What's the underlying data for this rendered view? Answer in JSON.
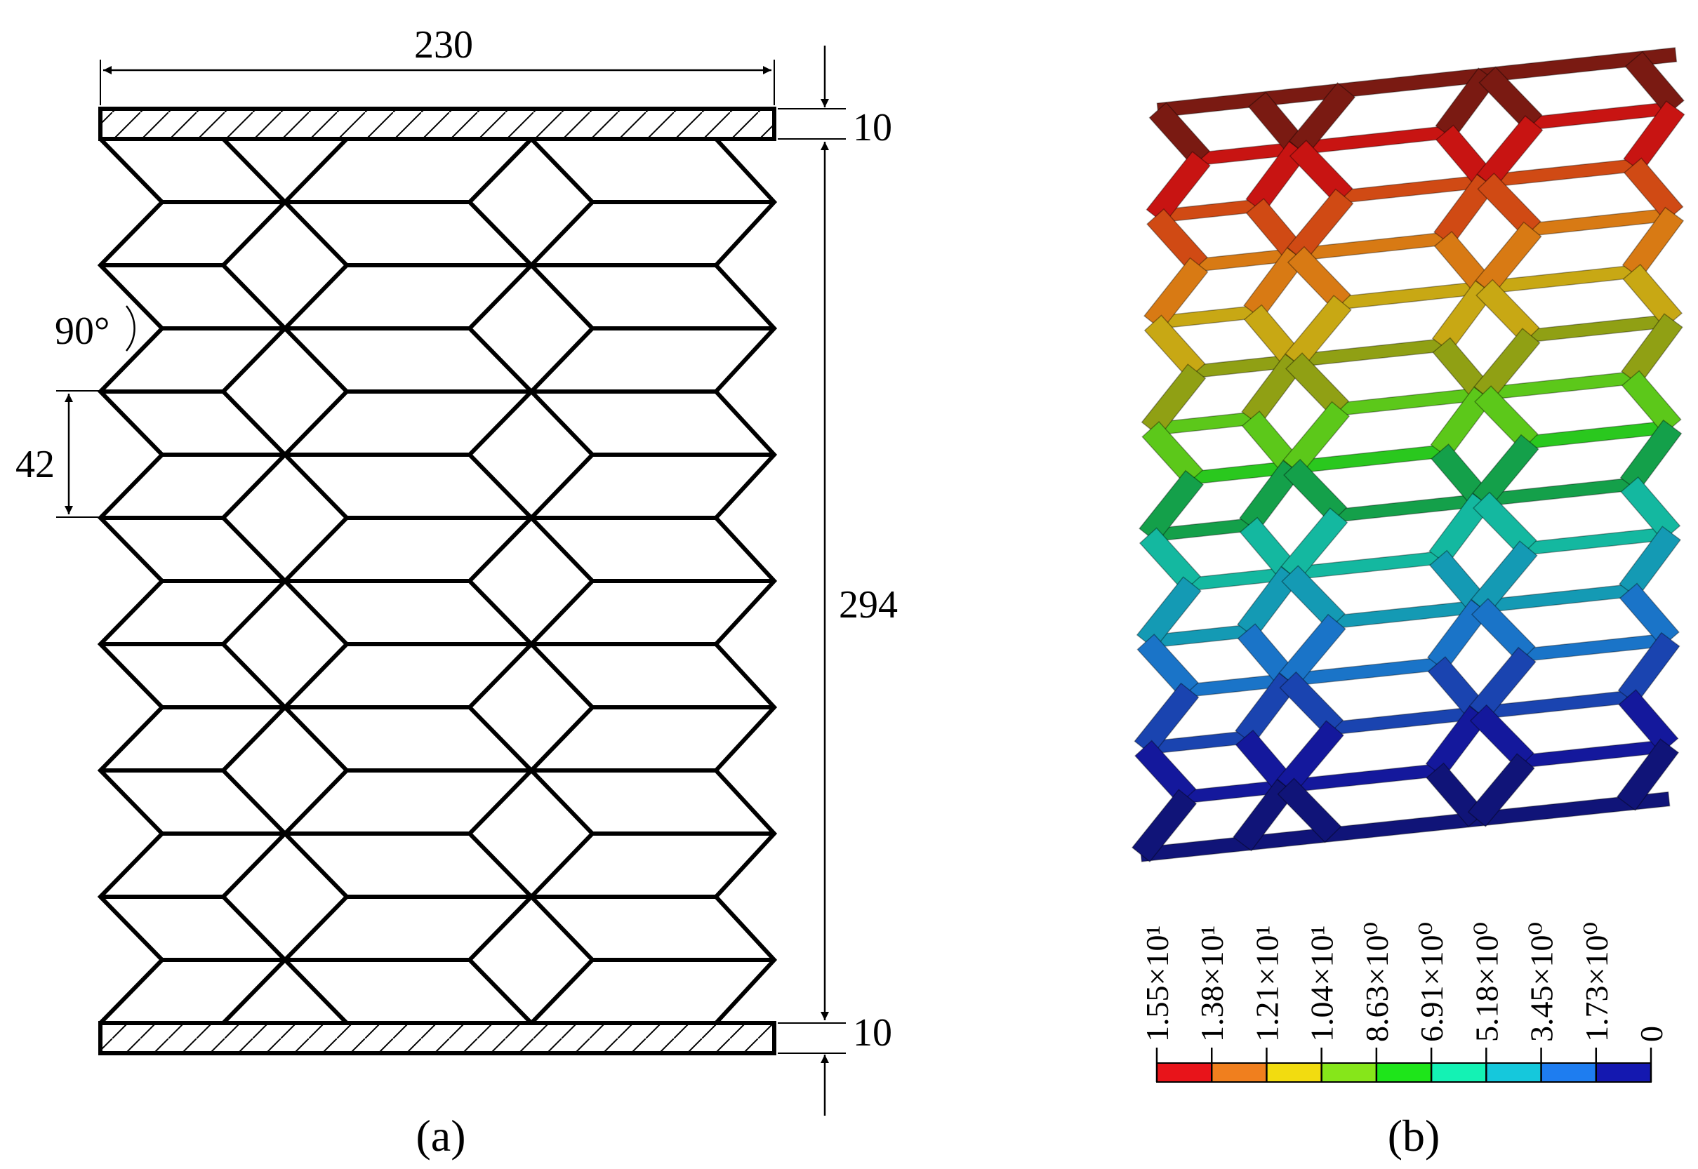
{
  "panel_a": {
    "caption": "(a)",
    "width_label": "230",
    "height_label": "294",
    "top_plate_label": "10",
    "bottom_plate_label": "10",
    "cell_height_label": "42",
    "angle_label": "90°"
  },
  "panel_b": {
    "caption": "(b)",
    "legend": {
      "labels": [
        "1.55×10¹",
        "1.38×10¹",
        "1.21×10¹",
        "1.04×10¹",
        "8.63×10⁰",
        "6.91×10⁰",
        "5.18×10⁰",
        "3.45×10⁰",
        "1.73×10⁰",
        "0"
      ],
      "colors": [
        "#e8141a",
        "#f07f1e",
        "#f2dc10",
        "#86e61a",
        "#1ee51a",
        "#14f2b4",
        "#15c8dc",
        "#1e7df0",
        "#1418b0"
      ]
    },
    "model_colors": [
      "#7a1a12",
      "#c81412",
      "#d04a14",
      "#d87a14",
      "#c8a814",
      "#90a014",
      "#5cc81a",
      "#2ac81e",
      "#14a04a",
      "#14b8a0",
      "#149ab4",
      "#1a74c8",
      "#1a44b0",
      "#14189c",
      "#101478"
    ]
  }
}
